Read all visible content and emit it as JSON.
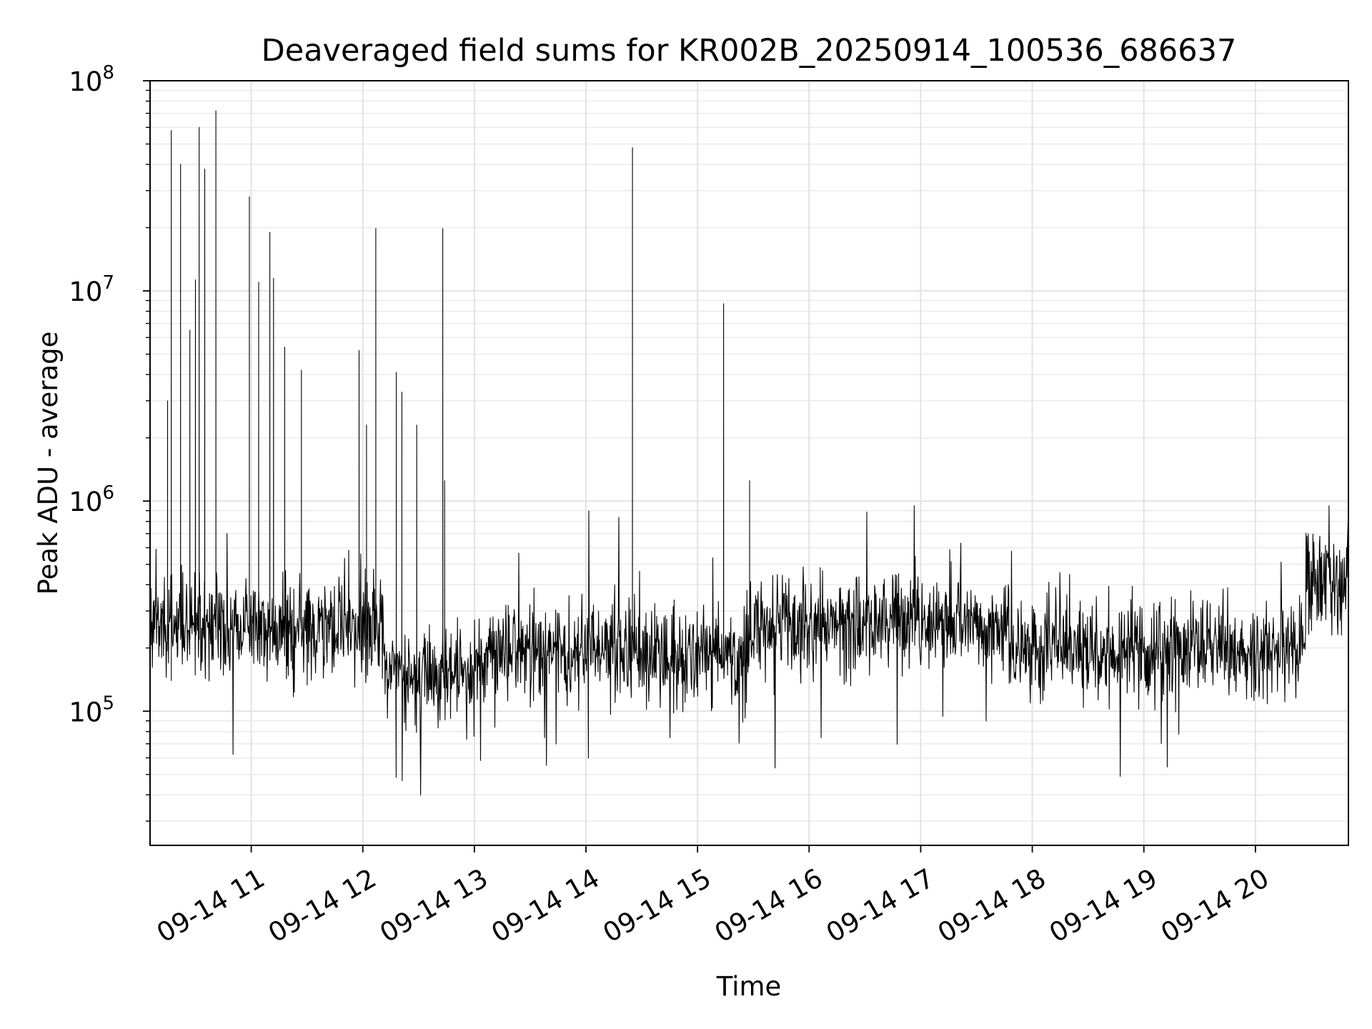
{
  "chart_data": {
    "type": "line",
    "title": "Deaveraged field sums for KR002B_20250914_100536_686637",
    "xlabel": "Time",
    "ylabel": "Peak ADU - average",
    "y_scale": "log",
    "y_tick_labels": [
      {
        "base": "10",
        "exp": "5",
        "value": 100000
      },
      {
        "base": "10",
        "exp": "6",
        "value": 1000000
      },
      {
        "base": "10",
        "exp": "7",
        "value": 10000000
      },
      {
        "base": "10",
        "exp": "8",
        "value": 100000000
      }
    ],
    "ylim": [
      23000,
      100000000
    ],
    "xlim": [
      "2025-09-14T10:05:36",
      "2025-09-14T20:50:00"
    ],
    "x_tick_labels": [
      {
        "label": "09-14 11",
        "time": "2025-09-14T11:00:00"
      },
      {
        "label": "09-14 12",
        "time": "2025-09-14T12:00:00"
      },
      {
        "label": "09-14 13",
        "time": "2025-09-14T13:00:00"
      },
      {
        "label": "09-14 14",
        "time": "2025-09-14T14:00:00"
      },
      {
        "label": "09-14 15",
        "time": "2025-09-14T15:00:00"
      },
      {
        "label": "09-14 16",
        "time": "2025-09-14T16:00:00"
      },
      {
        "label": "09-14 17",
        "time": "2025-09-14T17:00:00"
      },
      {
        "label": "09-14 18",
        "time": "2025-09-14T18:00:00"
      },
      {
        "label": "09-14 19",
        "time": "2025-09-14T19:00:00"
      },
      {
        "label": "09-14 20",
        "time": "2025-09-14T20:00:00"
      }
    ],
    "grid": true,
    "grid_minor": true,
    "line_color": "#000000",
    "grid_color": "#e6e6e6",
    "series": [
      {
        "values_note": "dense trace; baseline ~2e5-4e5 with noise between ~4e4 and ~9e5",
        "peaks": [
          {
            "time": "2025-09-14T10:15:00",
            "value": 3000000
          },
          {
            "time": "2025-09-14T10:17:00",
            "value": 58000000
          },
          {
            "time": "2025-09-14T10:22:00",
            "value": 40000000
          },
          {
            "time": "2025-09-14T10:27:00",
            "value": 6500000
          },
          {
            "time": "2025-09-14T10:30:00",
            "value": 11300000
          },
          {
            "time": "2025-09-14T10:32:00",
            "value": 60000000
          },
          {
            "time": "2025-09-14T10:35:00",
            "value": 38000000
          },
          {
            "time": "2025-09-14T10:41:00",
            "value": 72000000
          },
          {
            "time": "2025-09-14T10:59:00",
            "value": 28000000
          },
          {
            "time": "2025-09-14T11:04:00",
            "value": 11000000
          },
          {
            "time": "2025-09-14T11:10:00",
            "value": 19000000
          },
          {
            "time": "2025-09-14T11:12:00",
            "value": 11500000
          },
          {
            "time": "2025-09-14T11:18:00",
            "value": 5400000
          },
          {
            "time": "2025-09-14T11:27:00",
            "value": 4200000
          },
          {
            "time": "2025-09-14T11:58:00",
            "value": 5200000
          },
          {
            "time": "2025-09-14T12:02:00",
            "value": 2300000
          },
          {
            "time": "2025-09-14T12:07:00",
            "value": 19800000
          },
          {
            "time": "2025-09-14T12:18:00",
            "value": 4100000
          },
          {
            "time": "2025-09-14T12:21:00",
            "value": 3300000
          },
          {
            "time": "2025-09-14T12:29:00",
            "value": 2300000
          },
          {
            "time": "2025-09-14T12:43:00",
            "value": 19800000
          },
          {
            "time": "2025-09-14T12:44:00",
            "value": 1250000
          },
          {
            "time": "2025-09-14T14:25:00",
            "value": 48000000
          },
          {
            "time": "2025-09-14T15:14:00",
            "value": 8700000
          },
          {
            "time": "2025-09-14T15:28:00",
            "value": 1250000
          }
        ]
      }
    ]
  }
}
